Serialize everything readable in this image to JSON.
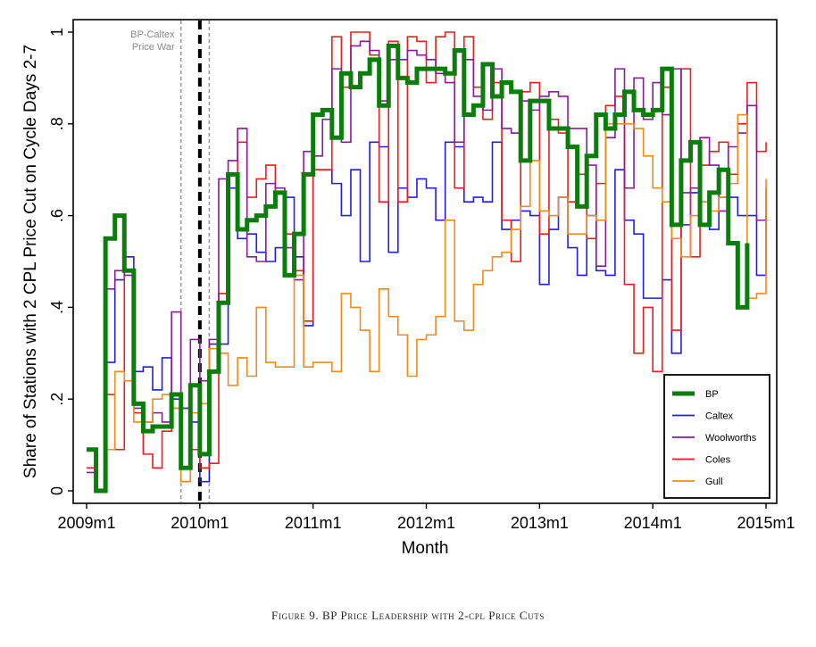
{
  "caption": "Figure 9. BP Price Leadership with 2-cpl Price Cuts",
  "chart_data": {
    "type": "line",
    "xlabel": "Month",
    "ylabel": "Share of Stations with 2 CPL Price Cut on Cycle Days 2-7",
    "ylim": [
      0,
      1
    ],
    "y_ticks": [
      0,
      0.2,
      0.4,
      0.6,
      0.8,
      1
    ],
    "y_tick_labels": [
      "0",
      ".2",
      ".4",
      ".6",
      ".8",
      "1"
    ],
    "x_ticks": [
      0,
      12,
      24,
      36,
      48,
      60,
      72
    ],
    "x_tick_labels": [
      "2009m1",
      "2010m1",
      "2011m1",
      "2012m1",
      "2013m1",
      "2014m1",
      "2015m1"
    ],
    "grid": false,
    "legend_position": "bottom-right",
    "annotations": [
      {
        "text": [
          "BP-Caltex",
          "Price War"
        ],
        "x": 10
      }
    ],
    "vlines": [
      {
        "x": 10,
        "style": "dashed-gray"
      },
      {
        "x": 12,
        "style": "dashed-black-thick"
      },
      {
        "x": 13,
        "style": "dashed-gray"
      }
    ],
    "series": [
      {
        "name": "Caltex",
        "color": "#1f1fe6",
        "width": 1.6,
        "values": [
          0.09,
          0.0,
          0.28,
          0.46,
          0.51,
          0.26,
          0.27,
          0.22,
          0.29,
          0.2,
          0.18,
          0.15,
          0.02,
          0.32,
          0.32,
          0.66,
          0.55,
          0.56,
          0.52,
          0.5,
          0.53,
          0.64,
          0.51,
          0.36,
          0.7,
          0.7,
          0.67,
          0.6,
          0.7,
          0.5,
          0.76,
          0.75,
          0.52,
          0.66,
          0.64,
          0.68,
          0.66,
          0.59,
          0.76,
          0.75,
          0.63,
          0.64,
          0.63,
          0.76,
          0.57,
          0.59,
          0.61,
          0.6,
          0.45,
          0.57,
          0.64,
          0.53,
          0.47,
          0.6,
          0.48,
          0.47,
          0.7,
          0.59,
          0.56,
          0.42,
          0.42,
          0.46,
          0.3,
          0.58,
          0.65,
          0.63,
          0.57,
          0.64,
          0.64,
          0.6,
          0.6,
          0.47,
          0.6
        ]
      },
      {
        "name": "Coles",
        "color": "#ee1c1c",
        "width": 1.6,
        "values": [
          0.05,
          0.0,
          0.21,
          0.09,
          0.48,
          0.17,
          0.08,
          0.05,
          0.13,
          0.18,
          0.02,
          0.09,
          0.05,
          0.06,
          0.43,
          0.69,
          0.76,
          0.64,
          0.68,
          0.71,
          0.65,
          0.56,
          0.48,
          0.37,
          0.7,
          0.7,
          0.99,
          0.88,
          1.0,
          1.0,
          0.95,
          0.63,
          0.98,
          0.63,
          0.99,
          0.98,
          0.89,
          0.99,
          1.0,
          0.66,
          0.99,
          0.88,
          0.81,
          0.89,
          0.59,
          0.5,
          0.87,
          0.89,
          0.56,
          0.81,
          0.78,
          0.63,
          0.69,
          0.55,
          0.67,
          0.84,
          0.86,
          0.45,
          0.3,
          0.4,
          0.26,
          0.88,
          0.35,
          0.92,
          0.51,
          0.71,
          0.74,
          0.76,
          0.69,
          0.8,
          0.89,
          0.74,
          0.76
        ]
      },
      {
        "name": "Woolworths",
        "color": "#8b1a9b",
        "width": 1.6,
        "values": [
          0.04,
          0.0,
          0.44,
          0.48,
          0.47,
          0.18,
          0.15,
          0.17,
          0.15,
          0.39,
          0.18,
          0.33,
          0.24,
          0.33,
          0.68,
          0.72,
          0.79,
          0.51,
          0.5,
          0.67,
          0.66,
          0.53,
          0.46,
          0.74,
          0.73,
          0.81,
          0.92,
          0.76,
          0.97,
          0.98,
          0.96,
          0.85,
          0.94,
          0.94,
          0.96,
          0.95,
          0.94,
          0.91,
          0.89,
          0.76,
          0.94,
          0.86,
          0.83,
          0.92,
          0.79,
          0.78,
          0.85,
          0.83,
          0.86,
          0.87,
          0.86,
          0.79,
          0.79,
          0.71,
          0.49,
          0.77,
          0.92,
          0.66,
          0.9,
          0.81,
          0.89,
          0.82,
          0.92,
          0.65,
          0.66,
          0.77,
          0.71,
          0.61,
          0.75,
          0.78,
          0.84,
          0.59,
          0.66
        ]
      },
      {
        "name": "Gull",
        "color": "#f28a1c",
        "width": 1.6,
        "values": [
          0.09,
          0.0,
          0.09,
          0.26,
          0.24,
          0.15,
          0.15,
          0.2,
          0.21,
          0.18,
          0.02,
          0.17,
          0.19,
          0.31,
          0.3,
          0.23,
          0.29,
          0.25,
          0.4,
          0.28,
          0.27,
          0.27,
          0.47,
          0.27,
          0.28,
          0.28,
          0.26,
          0.43,
          0.4,
          0.35,
          0.26,
          0.44,
          0.38,
          0.34,
          0.25,
          0.33,
          0.34,
          0.38,
          0.59,
          0.37,
          0.35,
          0.45,
          0.48,
          0.51,
          0.52,
          0.57,
          0.62,
          0.72,
          0.61,
          0.6,
          0.64,
          0.56,
          0.56,
          0.6,
          0.59,
          0.8,
          0.8,
          0.8,
          0.79,
          0.73,
          0.66,
          0.63,
          0.55,
          0.51,
          0.6,
          0.63,
          0.61,
          0.64,
          0.67,
          0.82,
          0.42,
          0.43,
          0.68
        ]
      },
      {
        "name": "BP",
        "color": "#0a7d0a",
        "width": 5,
        "values": [
          0.09,
          0.0,
          0.55,
          0.6,
          0.48,
          0.19,
          0.13,
          0.14,
          0.14,
          0.21,
          0.05,
          0.23,
          0.08,
          0.26,
          0.41,
          0.69,
          0.57,
          0.59,
          0.6,
          0.62,
          0.65,
          0.47,
          0.56,
          0.69,
          0.82,
          0.83,
          0.77,
          0.91,
          0.88,
          0.91,
          0.94,
          0.84,
          0.97,
          0.9,
          0.89,
          0.92,
          0.92,
          0.92,
          0.91,
          0.96,
          0.82,
          0.84,
          0.93,
          0.86,
          0.89,
          0.87,
          0.72,
          0.85,
          0.85,
          0.79,
          0.79,
          0.75,
          0.62,
          0.73,
          0.82,
          0.79,
          0.82,
          0.87,
          0.83,
          0.82,
          0.83,
          0.92,
          0.58,
          0.72,
          0.76,
          0.58,
          0.65,
          0.7,
          0.54,
          0.4,
          0.54
        ]
      }
    ]
  }
}
